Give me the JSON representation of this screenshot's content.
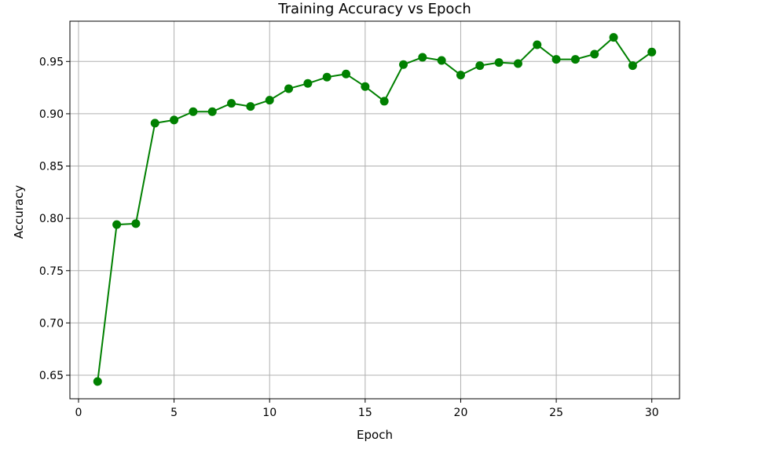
{
  "chart_data": {
    "type": "line",
    "title": "Training Accuracy vs Epoch",
    "xlabel": "Epoch",
    "ylabel": "Accuracy",
    "xlim": [
      -0.45,
      31.45
    ],
    "ylim": [
      0.6275,
      0.9885
    ],
    "xticks": [
      0,
      5,
      10,
      15,
      20,
      25,
      30
    ],
    "xtick_labels": [
      "0",
      "5",
      "10",
      "15",
      "20",
      "25",
      "30"
    ],
    "yticks": [
      0.65,
      0.7,
      0.75,
      0.8,
      0.85,
      0.9,
      0.95
    ],
    "ytick_labels": [
      "0.65",
      "0.70",
      "0.75",
      "0.80",
      "0.85",
      "0.90",
      "0.95"
    ],
    "grid": true,
    "marker": "circle",
    "series": [
      {
        "color": "#008000",
        "x": [
          1,
          2,
          3,
          4,
          5,
          6,
          7,
          8,
          9,
          10,
          11,
          12,
          13,
          14,
          15,
          16,
          17,
          18,
          19,
          20,
          21,
          22,
          23,
          24,
          25,
          26,
          27,
          28,
          29,
          30
        ],
        "y": [
          0.644,
          0.794,
          0.795,
          0.891,
          0.894,
          0.902,
          0.902,
          0.91,
          0.907,
          0.913,
          0.924,
          0.929,
          0.935,
          0.938,
          0.926,
          0.912,
          0.947,
          0.954,
          0.951,
          0.937,
          0.946,
          0.949,
          0.948,
          0.966,
          0.952,
          0.952,
          0.957,
          0.973,
          0.946,
          0.959
        ]
      }
    ]
  }
}
